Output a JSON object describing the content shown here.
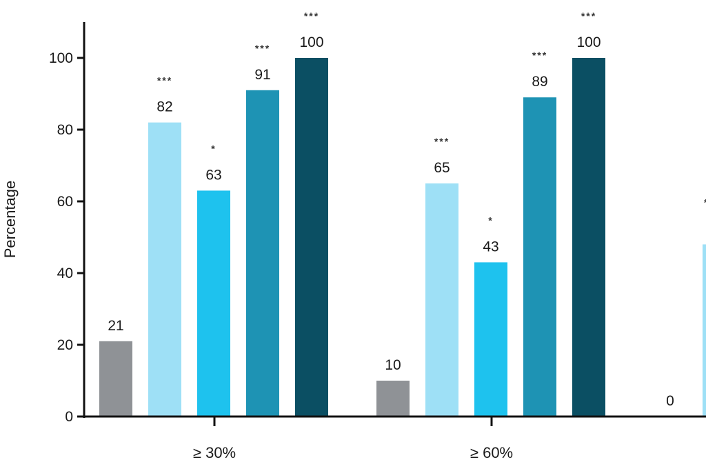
{
  "chart_data": {
    "type": "bar",
    "ylabel": "Percentage",
    "ylim": [
      0,
      110
    ],
    "yticks": [
      "0",
      "20",
      "40",
      "60",
      "80",
      "100"
    ],
    "grid": false,
    "categories": [
      "≥ 30%",
      "≥ 60%",
      ""
    ],
    "series": [
      {
        "color": "#8f9296",
        "values": [
          21,
          10,
          0
        ]
      },
      {
        "color": "#9ee0f6",
        "values": [
          82,
          65,
          null
        ]
      },
      {
        "color": "#1ec2ee",
        "values": [
          63,
          43,
          null
        ]
      },
      {
        "color": "#1e93b4",
        "values": [
          91,
          89,
          null
        ]
      },
      {
        "color": "#0b4f63",
        "values": [
          100,
          100,
          null
        ]
      }
    ],
    "data_labels": [
      [
        "21",
        "82",
        "63",
        "91",
        "100"
      ],
      [
        "10",
        "65",
        "43",
        "89",
        "100"
      ],
      [
        "0",
        "",
        "",
        "",
        ""
      ]
    ],
    "significance": [
      [
        "",
        "***",
        "*",
        "***",
        "***"
      ],
      [
        "",
        "***",
        "*",
        "***",
        "***"
      ],
      [
        "",
        "",
        "",
        "",
        ""
      ]
    ],
    "partial_bar": {
      "value": 48,
      "color": "#9ee0f6",
      "significance": "*"
    }
  }
}
